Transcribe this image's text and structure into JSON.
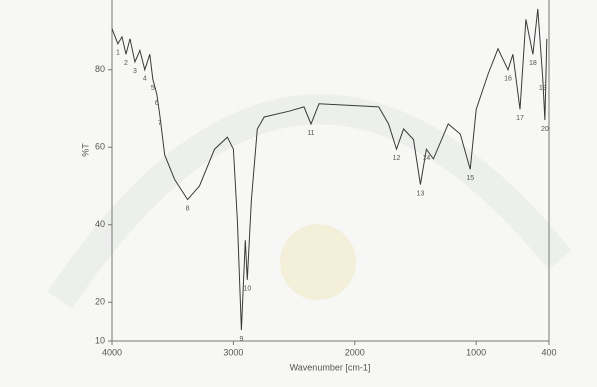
{
  "chart_data": {
    "type": "line",
    "x_label": "Wavenumber [cm-1]",
    "y_label": "%T",
    "xlim": [
      4000,
      400
    ],
    "ylim": [
      10,
      98
    ],
    "xticks": [
      4000,
      3000,
      2000,
      1000,
      400
    ],
    "yticks": [
      10,
      20,
      40,
      60,
      80
    ],
    "series": [
      {
        "color": "#3a3a3a",
        "x": [
          4000,
          3951,
          3918,
          3885,
          3852,
          3811,
          3770,
          3730,
          3689,
          3664,
          3631,
          3607,
          3566,
          3484,
          3377,
          3279,
          3156,
          3049,
          3000,
          2967,
          2934,
          2902,
          2885,
          2852,
          2803,
          2746,
          2541,
          2418,
          2361,
          2295,
          1803,
          1721,
          1656,
          1598,
          1516,
          1459,
          1410,
          1352,
          1230,
          1131,
          1049,
          1000,
          902,
          820,
          738,
          697,
          639,
          590,
          533,
          492,
          451,
          434,
          418
        ],
        "values": [
          90.6,
          86.7,
          88.5,
          84,
          88,
          82,
          85,
          80,
          84,
          77.6,
          73.7,
          68.5,
          58,
          51.7,
          46.5,
          50,
          59.5,
          62.6,
          59.5,
          41,
          12.8,
          36,
          25.8,
          46.5,
          64.7,
          67.8,
          69.3,
          70.4,
          66,
          71.2,
          70.4,
          66,
          59.5,
          64.7,
          62,
          50.4,
          59.5,
          57,
          66,
          63.4,
          54.3,
          69.8,
          78.9,
          85.4,
          80,
          84,
          69.8,
          93,
          84,
          95.7,
          77.6,
          67,
          88
        ]
      }
    ],
    "annotations": [
      {
        "text": "1",
        "x": 3951,
        "y": 86.7
      },
      {
        "text": "2",
        "x": 3885,
        "y": 84
      },
      {
        "text": "3",
        "x": 3811,
        "y": 82
      },
      {
        "text": "4",
        "x": 3730,
        "y": 80
      },
      {
        "text": "5",
        "x": 3664,
        "y": 77.6
      },
      {
        "text": "6",
        "x": 3631,
        "y": 73.7
      },
      {
        "text": "7",
        "x": 3607,
        "y": 68.5
      },
      {
        "text": "8",
        "x": 3377,
        "y": 46.5
      },
      {
        "text": "9",
        "x": 2934,
        "y": 12.8
      },
      {
        "text": "10",
        "x": 2885,
        "y": 25.8
      },
      {
        "text": "11",
        "x": 2361,
        "y": 66
      },
      {
        "text": "12",
        "x": 1656,
        "y": 59.5
      },
      {
        "text": "13",
        "x": 1459,
        "y": 50.4
      },
      {
        "text": "14",
        "x": 1410,
        "y": 59.5
      },
      {
        "text": "15",
        "x": 1049,
        "y": 54.3
      },
      {
        "text": "16",
        "x": 738,
        "y": 80
      },
      {
        "text": "17",
        "x": 639,
        "y": 69.8
      },
      {
        "text": "18",
        "x": 533,
        "y": 84
      },
      {
        "text": "19",
        "x": 451,
        "y": 77.6
      },
      {
        "text": "20",
        "x": 434,
        "y": 67
      }
    ]
  }
}
